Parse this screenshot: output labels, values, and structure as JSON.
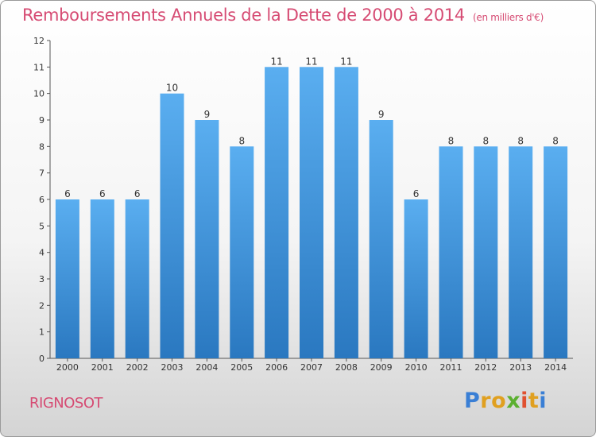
{
  "header": {
    "title": "Remboursements Annuels de la Dette de 2000 à 2014",
    "subtitle": "(en milliers d'€)"
  },
  "footer": {
    "place": "RIGNOSOT",
    "logo": "Proxiti"
  },
  "colors": {
    "title": "#d64b73",
    "bar_top": "#5aaef0",
    "bar_bottom": "#2a78c0",
    "logo": [
      "#3a7fd5",
      "#e0a020",
      "#e0a020",
      "#5bb030",
      "#e05030",
      "#e0a020",
      "#3a7fd5"
    ]
  },
  "chart_data": {
    "type": "bar",
    "categories": [
      "2000",
      "2001",
      "2002",
      "2003",
      "2004",
      "2005",
      "2006",
      "2007",
      "2008",
      "2009",
      "2010",
      "2011",
      "2012",
      "2013",
      "2014"
    ],
    "values": [
      6,
      6,
      6,
      10,
      9,
      8,
      11,
      11,
      11,
      9,
      6,
      8,
      8,
      8,
      8
    ],
    "data_labels": [
      "6",
      "6",
      "6",
      "10",
      "9",
      "8",
      "11",
      "11",
      "11",
      "9",
      "6",
      "8",
      "8",
      "8",
      "8"
    ],
    "yticks": [
      "0",
      "1",
      "2",
      "3",
      "4",
      "5",
      "6",
      "7",
      "8",
      "9",
      "10",
      "11",
      "12"
    ],
    "ylim": [
      0,
      12
    ],
    "grid": false,
    "legend": "none"
  }
}
